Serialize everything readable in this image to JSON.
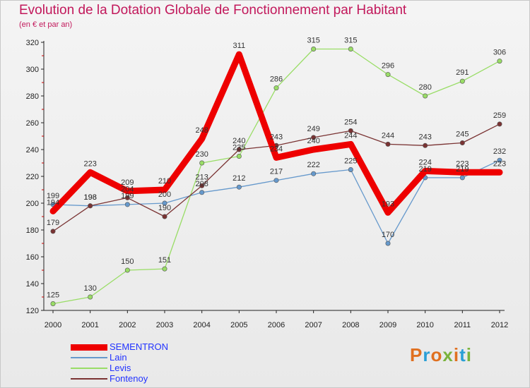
{
  "header": {
    "title": "Evolution de la Dotation Globale de Fonctionnement par Habitant",
    "subtitle": "(en € et par an)"
  },
  "brand": {
    "logo_text": "Proxiti"
  },
  "chart_data": {
    "type": "line",
    "title": "Evolution de la Dotation Globale de Fonctionnement par Habitant",
    "subtitle": "(en € et par an)",
    "xlabel": "",
    "ylabel": "",
    "x": [
      "2000",
      "2001",
      "2002",
      "2003",
      "2004",
      "2005",
      "2006",
      "2007",
      "2008",
      "2009",
      "2010",
      "2011",
      "2012"
    ],
    "ylim": [
      120,
      320
    ],
    "yticks": [
      120,
      140,
      160,
      180,
      200,
      220,
      240,
      260,
      280,
      300,
      320
    ],
    "grid": false,
    "legend": "bottom-left",
    "series": [
      {
        "name": "SEMENTRON",
        "color": "#ee0000",
        "width": 9,
        "marker": 0,
        "values": [
          194,
          223,
          209,
          210,
          248,
          311,
          234,
          240,
          244,
          193,
          224,
          223,
          223
        ]
      },
      {
        "name": "Lain",
        "color": "#6699cc",
        "width": 1.3,
        "marker": 3.2,
        "values": [
          199,
          198,
          199,
          200,
          208,
          212,
          217,
          222,
          225,
          170,
          219,
          219,
          232
        ]
      },
      {
        "name": "Levis",
        "color": "#99dd66",
        "width": 1.3,
        "marker": 3.2,
        "values": [
          125,
          130,
          150,
          151,
          230,
          235,
          286,
          315,
          315,
          296,
          280,
          291,
          306
        ]
      },
      {
        "name": "Fontenoy",
        "color": "#7a3333",
        "width": 1.3,
        "marker": 3.2,
        "values": [
          179,
          198,
          204,
          190,
          213,
          240,
          243,
          249,
          254,
          244,
          243,
          245,
          259
        ]
      }
    ]
  }
}
